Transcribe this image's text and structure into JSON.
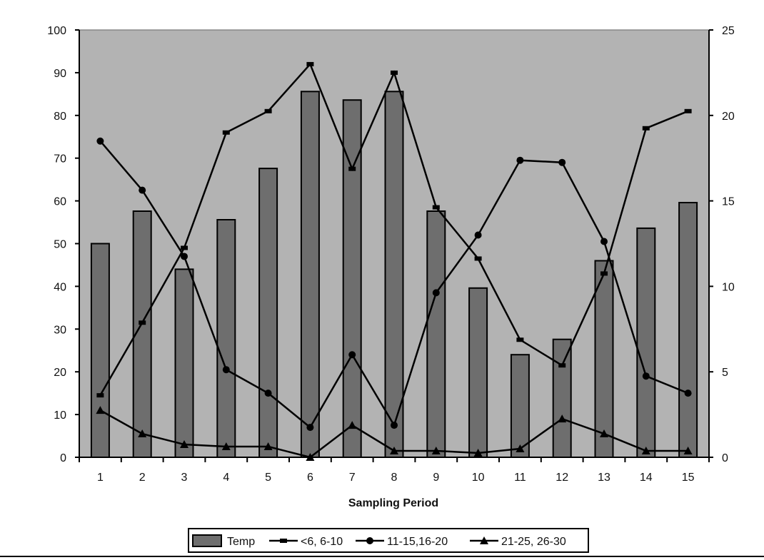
{
  "chart_data": {
    "type": "bar",
    "title": "",
    "xlabel": "Sampling Period",
    "ylabel": "",
    "y2label": "",
    "categories": [
      "1",
      "2",
      "3",
      "4",
      "5",
      "6",
      "7",
      "8",
      "9",
      "10",
      "11",
      "12",
      "13",
      "14",
      "15"
    ],
    "ylim": [
      0,
      100
    ],
    "yticks": [
      0,
      10,
      20,
      30,
      40,
      50,
      60,
      70,
      80,
      90,
      100
    ],
    "y2lim": [
      0,
      25
    ],
    "y2ticks": [
      0,
      5,
      10,
      15,
      20,
      25
    ],
    "grid": false,
    "legend_position": "bottom",
    "colors": {
      "plot_background": "#b3b3b3",
      "bar_fill": "#6e6e6e",
      "line": "#000000",
      "axis": "#000000"
    },
    "series": [
      {
        "name": "Temp",
        "type": "bar",
        "axis": "right",
        "values": [
          12.5,
          14.4,
          11.0,
          13.9,
          16.9,
          21.4,
          20.9,
          21.4,
          14.4,
          9.9,
          6.0,
          6.9,
          11.5,
          13.4,
          14.9
        ]
      },
      {
        "name": "<6, 6-10",
        "type": "line",
        "marker": "dash",
        "axis": "left",
        "values": [
          14.5,
          31.5,
          49,
          76,
          81,
          92,
          67.5,
          90,
          58.5,
          46.5,
          27.5,
          21.5,
          43,
          77,
          81
        ]
      },
      {
        "name": "11-15,16-20",
        "type": "line",
        "marker": "circle",
        "axis": "left",
        "values": [
          74,
          62.5,
          47,
          20.5,
          15,
          7,
          24,
          7.5,
          38.5,
          52,
          69.5,
          69,
          50.5,
          19,
          15
        ]
      },
      {
        "name": "21-25, 26-30",
        "type": "line",
        "marker": "triangle",
        "axis": "left",
        "values": [
          11,
          5.5,
          3,
          2.5,
          2.5,
          0,
          7.5,
          1.5,
          1.5,
          1,
          2,
          9,
          5.5,
          1.5,
          1.5
        ]
      }
    ]
  }
}
